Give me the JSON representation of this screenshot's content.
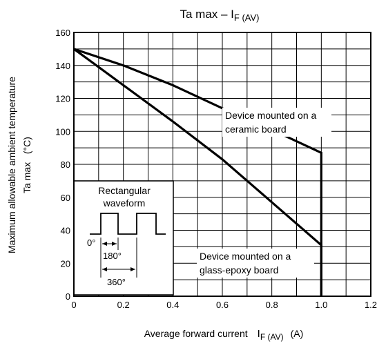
{
  "chart_data": {
    "type": "line",
    "title": {
      "main": "Ta max – I",
      "sub": "F (AV)"
    },
    "xlabel": {
      "main": "Average forward current",
      "sub_main": "I",
      "sub": "F (AV)",
      "unit": "(A)"
    },
    "ylabel": {
      "line1": "Maximum allowable ambient temperature",
      "line2": "Ta max   (°C)"
    },
    "xlim": [
      0,
      1.2
    ],
    "ylim": [
      0,
      160
    ],
    "x_ticks": [
      0,
      0.2,
      0.4,
      0.6,
      0.8,
      1.0,
      1.2
    ],
    "x_tick_labels": [
      "0",
      "0.2",
      "0.4",
      "0.6",
      "0.8",
      "1.0",
      "1.2"
    ],
    "y_ticks": [
      0,
      20,
      40,
      60,
      80,
      100,
      120,
      140,
      160
    ],
    "y_tick_labels": [
      "0",
      "20",
      "40",
      "60",
      "80",
      "100",
      "120",
      "140",
      "160"
    ],
    "grid": true,
    "series": [
      {
        "name": "Device mounted on a ceramic board",
        "label_lines": [
          "Device mounted on a",
          "ceramic board"
        ],
        "x": [
          0,
          0.2,
          0.4,
          0.6,
          0.8,
          1.0,
          1.0
        ],
        "y": [
          150,
          140,
          128,
          114,
          101,
          87,
          0
        ]
      },
      {
        "name": "Device mounted on a glass-epoxy board",
        "label_lines": [
          "Device mounted on a",
          "glass-epoxy board"
        ],
        "x": [
          0,
          0.2,
          0.4,
          0.6,
          0.8,
          1.0,
          1.0
        ],
        "y": [
          150,
          128,
          106,
          83,
          57,
          31,
          0
        ]
      }
    ],
    "inset": {
      "title_lines": [
        "Rectangular",
        "waveform"
      ],
      "labels": {
        "zero": "0°",
        "on": "180°",
        "period": "360°"
      }
    }
  }
}
